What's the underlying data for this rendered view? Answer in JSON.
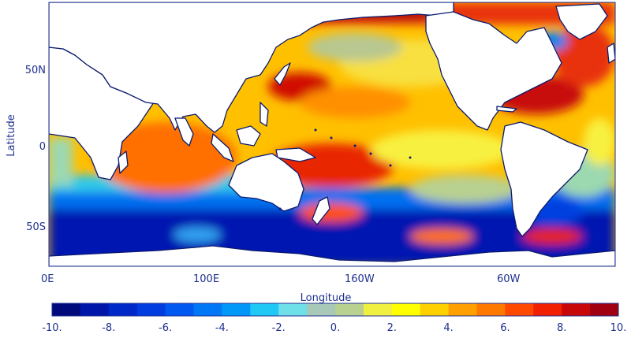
{
  "map": {
    "projection": "cylindrical equidistant, centered on Pacific",
    "xlabel": "Longitude",
    "ylabel": "Latitude",
    "x_ticks": [
      "0E",
      "100E",
      "160W",
      "60W"
    ],
    "y_ticks": [
      "50N",
      "0",
      "50S"
    ],
    "land_color": "#ffffff",
    "coast_color": "#0b1a6e"
  },
  "colorbar": {
    "tick_labels": [
      "-10.",
      "-8.",
      "-6.",
      "-4.",
      "-2.",
      "0.",
      "2.",
      "4.",
      "6.",
      "8.",
      "10."
    ],
    "range": [
      -10,
      10
    ],
    "levels": 20,
    "colors": [
      "#000a7a",
      "#0016a8",
      "#0028c8",
      "#003ce0",
      "#0058f0",
      "#0078f5",
      "#0098f8",
      "#20c8f5",
      "#70e0e8",
      "#a8c8b8",
      "#b8d090",
      "#f0f040",
      "#ffff00",
      "#ffd000",
      "#ffa000",
      "#ff7800",
      "#ff4800",
      "#f02000",
      "#c80808",
      "#a00010"
    ]
  }
}
